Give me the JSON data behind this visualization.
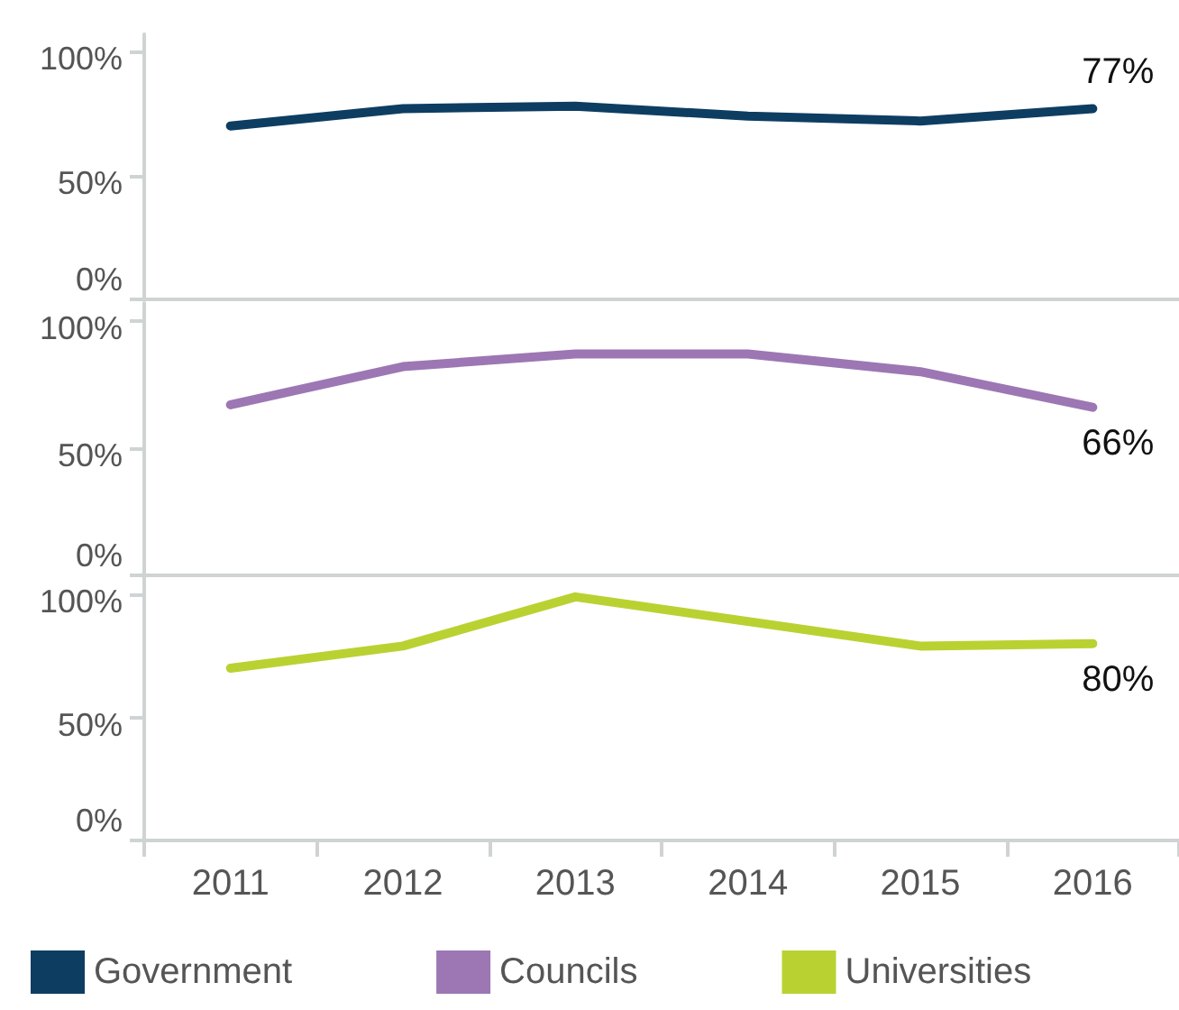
{
  "chart_data": [
    {
      "type": "line",
      "categories": [
        "2011",
        "2012",
        "2013",
        "2014",
        "2015",
        "2016"
      ],
      "series": [
        {
          "name": "Government",
          "color": "#0e3d62",
          "values": [
            70,
            77,
            78,
            74,
            72,
            77
          ],
          "value_labels": [
            null,
            null,
            null,
            null,
            null,
            "77%"
          ]
        }
      ],
      "ylim": [
        0,
        107
      ],
      "yticks": [
        {
          "value": 0,
          "label": "0%"
        },
        {
          "value": 50,
          "label": "50%"
        },
        {
          "value": 100,
          "label": "100%"
        }
      ],
      "tick_labels": "y",
      "grid": false,
      "marker": "none",
      "line_style": "solid",
      "legend": "bottom"
    },
    {
      "type": "line",
      "categories": [
        "2011",
        "2012",
        "2013",
        "2014",
        "2015",
        "2016"
      ],
      "series": [
        {
          "name": "Councils",
          "color": "#9c77b4",
          "values": [
            67,
            82,
            87,
            87,
            80,
            66
          ],
          "value_labels": [
            null,
            null,
            null,
            null,
            null,
            "66%"
          ]
        }
      ],
      "ylim": [
        0,
        107
      ],
      "yticks": [
        {
          "value": 0,
          "label": "0%"
        },
        {
          "value": 50,
          "label": "50%"
        },
        {
          "value": 100,
          "label": "100%"
        }
      ],
      "tick_labels": "y",
      "grid": false,
      "marker": "none",
      "line_style": "solid",
      "legend": "bottom"
    },
    {
      "type": "line",
      "categories": [
        "2011",
        "2012",
        "2013",
        "2014",
        "2015",
        "2016"
      ],
      "series": [
        {
          "name": "Universities",
          "color": "#b9d232",
          "values": [
            70,
            79,
            99,
            89,
            79,
            80
          ],
          "value_labels": [
            null,
            null,
            null,
            null,
            null,
            "80%"
          ]
        }
      ],
      "ylim": [
        0,
        107
      ],
      "yticks": [
        {
          "value": 0,
          "label": "0%"
        },
        {
          "value": 50,
          "label": "50%"
        },
        {
          "value": 100,
          "label": "100%"
        }
      ],
      "grid": false,
      "marker": "none",
      "line_style": "solid",
      "legend": "bottom"
    }
  ]
}
